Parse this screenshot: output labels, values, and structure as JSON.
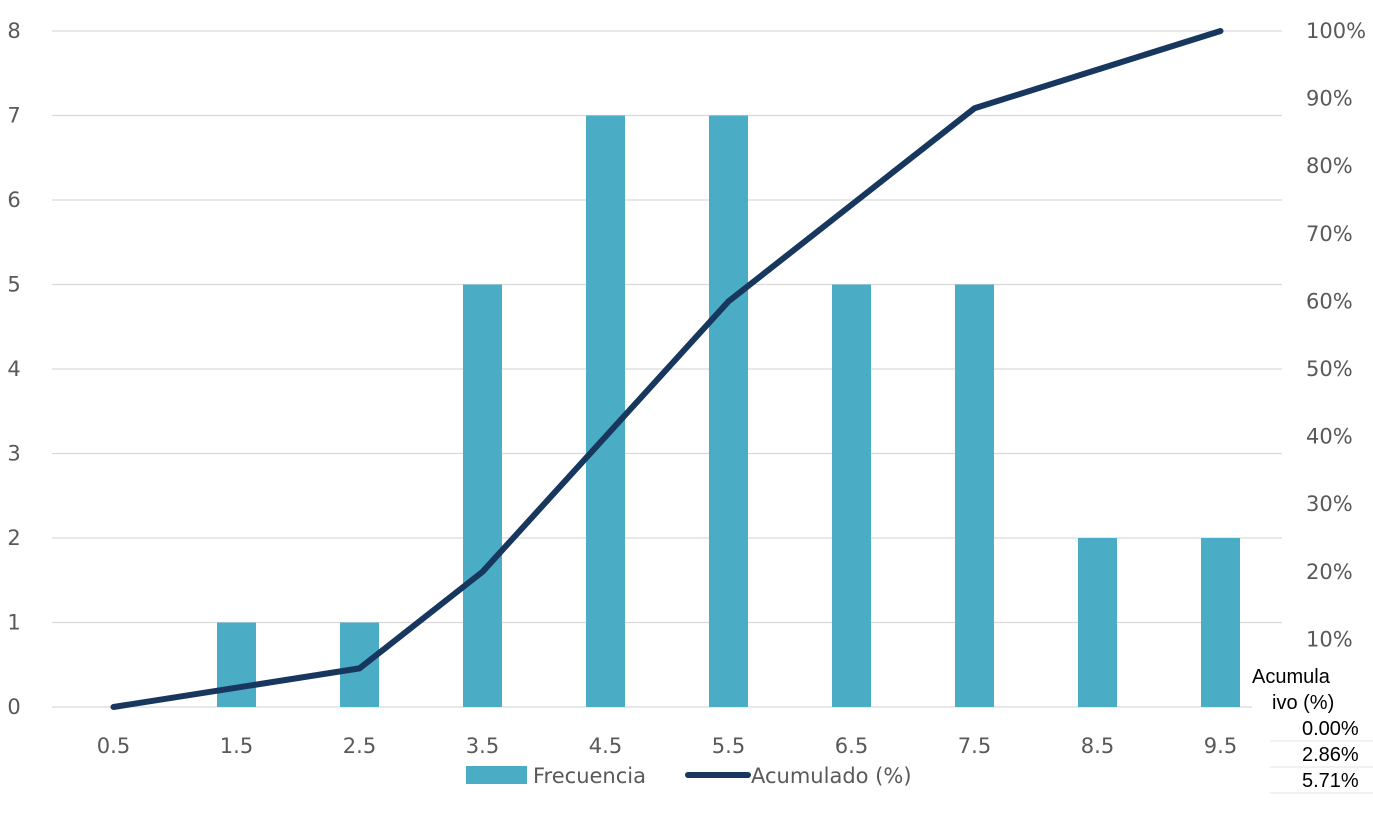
{
  "chart_data": {
    "type": "bar",
    "categories": [
      "0.5",
      "1.5",
      "2.5",
      "3.5",
      "4.5",
      "5.5",
      "6.5",
      "7.5",
      "8.5",
      "9.5"
    ],
    "series": [
      {
        "name": "Frecuencia",
        "type": "bar",
        "axis": "left",
        "color": "#4bacc6",
        "values": [
          0,
          1,
          1,
          5,
          7,
          7,
          5,
          5,
          2,
          2
        ]
      },
      {
        "name": "Acumulado (%)",
        "type": "line",
        "axis": "right",
        "color": "#17375e",
        "values": [
          0.0,
          2.86,
          5.71,
          20.0,
          40.0,
          60.0,
          74.29,
          88.57,
          94.29,
          100.0
        ]
      }
    ],
    "y_left": {
      "ticks": [
        "0",
        "1",
        "2",
        "3",
        "4",
        "5",
        "6",
        "7",
        "8"
      ],
      "ylim": [
        0,
        8
      ]
    },
    "y_right": {
      "ticks": [
        "10%",
        "20%",
        "30%",
        "40%",
        "50%",
        "60%",
        "70%",
        "80%",
        "90%",
        "100%"
      ],
      "ylim": [
        0,
        100
      ]
    },
    "grid": true,
    "legend": {
      "position": "bottom"
    },
    "title": "",
    "xlabel": "",
    "ylabel": ""
  },
  "side_table": {
    "header_line1": "Acumula",
    "header_line2": "ivo (%)",
    "cells": [
      "0.00%",
      "2.86%",
      "5.71%"
    ]
  }
}
